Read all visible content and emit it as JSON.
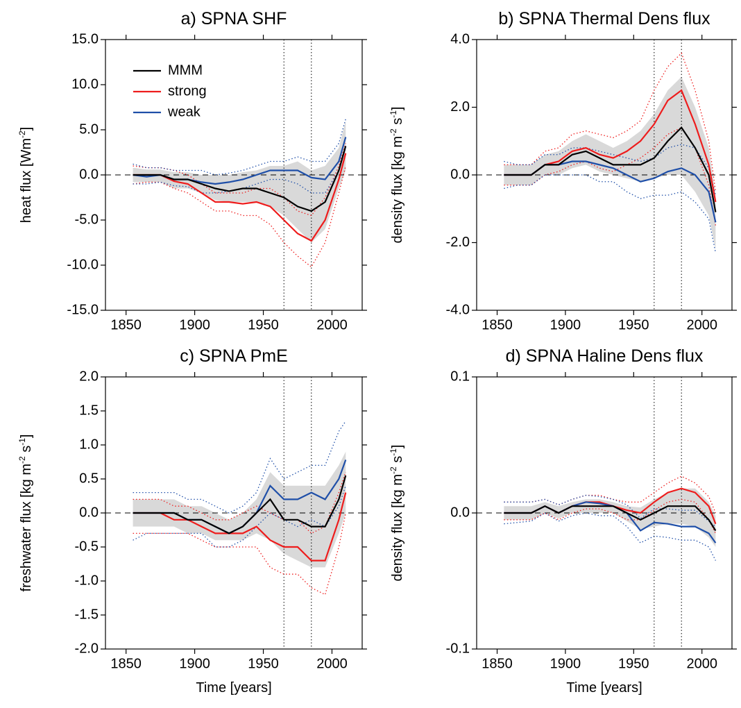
{
  "chart_data": [
    {
      "type": "line",
      "title": "a) SPNA SHF",
      "ylabel": [
        "heat flux [Wm",
        "-2",
        "]"
      ],
      "x": [
        1855,
        1865,
        1875,
        1885,
        1895,
        1905,
        1915,
        1925,
        1935,
        1945,
        1955,
        1965,
        1975,
        1985,
        1995,
        2005,
        2010
      ],
      "xlim": [
        1835,
        2022
      ],
      "xticks": [
        1850,
        1900,
        1950,
        2000
      ],
      "ylim": [
        -15,
        15
      ],
      "yticks": [
        {
          "value": -15,
          "label": "-15.0"
        },
        {
          "value": -10,
          "label": "-10.0"
        },
        {
          "value": -5,
          "label": "-5.0"
        },
        {
          "value": 0,
          "label": "0.0"
        },
        {
          "value": 5,
          "label": "5.0"
        },
        {
          "value": 10,
          "label": "10.0"
        },
        {
          "value": 15,
          "label": "15.0"
        }
      ],
      "vlines": [
        1965,
        1985
      ],
      "hline": 0,
      "legend": "upper left",
      "band": {
        "color": "#d9d9d9",
        "lower": [
          -0.8,
          -0.8,
          -0.8,
          -1.5,
          -1.5,
          -2,
          -2.8,
          -3,
          -3,
          -3,
          -3.5,
          -4.5,
          -6,
          -7.5,
          -6,
          -1.5,
          0.5
        ],
        "upper": [
          0.8,
          0.6,
          0.6,
          0.3,
          0.3,
          0,
          0,
          0,
          0.3,
          0.5,
          1,
          1,
          1.5,
          0.5,
          1,
          3,
          6
        ]
      },
      "series": [
        {
          "name": "MMM",
          "color": "#000000",
          "values": [
            0,
            0,
            0,
            -0.5,
            -0.5,
            -1,
            -1.5,
            -1.8,
            -1.5,
            -1.5,
            -2,
            -2.5,
            -3.5,
            -4,
            -3,
            0.5,
            3.2
          ]
        },
        {
          "name": "strong",
          "color": "#ee1c1c",
          "values": [
            0,
            0,
            0,
            -0.7,
            -1,
            -2,
            -3,
            -3,
            -3.2,
            -3,
            -3.5,
            -5,
            -6.5,
            -7.3,
            -5,
            -0.5,
            2.4
          ],
          "lower": [
            -1,
            -0.8,
            -0.8,
            -1.5,
            -2,
            -3,
            -4,
            -4,
            -4.5,
            -4.5,
            -5.5,
            -7.5,
            -9,
            -10.2,
            -7.5,
            -2,
            1
          ],
          "upper": [
            1,
            0.8,
            0.8,
            0.5,
            0,
            -1,
            -2,
            -2,
            -2,
            -1.5,
            -1.5,
            -2.5,
            -4,
            -4.5,
            -2.5,
            1,
            3.5
          ]
        },
        {
          "name": "weak",
          "color": "#1f4fa8",
          "values": [
            0,
            -0.2,
            0,
            -0.5,
            -0.5,
            -0.8,
            -1,
            -0.8,
            -0.5,
            0,
            0.5,
            0.5,
            0.5,
            -0.3,
            -0.5,
            1.5,
            4.2
          ],
          "lower": [
            -1,
            -1,
            -0.8,
            -1.2,
            -1.3,
            -2,
            -2,
            -1.8,
            -1.5,
            -1,
            -0.5,
            -0.5,
            -1,
            -2,
            -2,
            0.5,
            3
          ],
          "upper": [
            1.2,
            0.8,
            0.8,
            0.5,
            0.5,
            0.5,
            0,
            0.2,
            0.5,
            1,
            1.5,
            1.5,
            2,
            1.5,
            1.5,
            3.5,
            6.2
          ]
        }
      ]
    },
    {
      "type": "line",
      "title": "b) SPNA Thermal Dens flux",
      "ylabel": [
        "density flux [kg m",
        "-2",
        " s",
        "-1",
        "]"
      ],
      "x": [
        1855,
        1865,
        1875,
        1885,
        1895,
        1905,
        1915,
        1925,
        1935,
        1945,
        1955,
        1965,
        1975,
        1985,
        1995,
        2005,
        2010
      ],
      "xlim": [
        1835,
        2022
      ],
      "xticks": [
        1850,
        1900,
        1950,
        2000
      ],
      "ylim": [
        -4,
        4
      ],
      "yticks": [
        {
          "value": -4,
          "label": "-4.0"
        },
        {
          "value": -2,
          "label": "-2.0"
        },
        {
          "value": 0,
          "label": "0.0"
        },
        {
          "value": 2,
          "label": "2.0"
        },
        {
          "value": 4,
          "label": "4.0"
        }
      ],
      "vlines": [
        1965,
        1985
      ],
      "hline": 0,
      "band": {
        "color": "#d9d9d9",
        "lower": [
          -0.3,
          -0.3,
          -0.3,
          0,
          0,
          0.2,
          0.3,
          0.1,
          0,
          -0.1,
          -0.2,
          -0.1,
          0,
          0,
          -0.5,
          -1.2,
          -2.2
        ],
        "upper": [
          0.3,
          0.3,
          0.3,
          0.6,
          0.7,
          1,
          1.2,
          1,
          0.8,
          1,
          1.3,
          1.8,
          2.5,
          2.9,
          2,
          0.8,
          -0.6
        ]
      },
      "series": [
        {
          "color": "#000000",
          "values": [
            0,
            0,
            0,
            0.3,
            0.3,
            0.6,
            0.7,
            0.5,
            0.3,
            0.3,
            0.3,
            0.5,
            1,
            1.4,
            0.8,
            0,
            -1.1
          ]
        },
        {
          "color": "#ee1c1c",
          "values": [
            0,
            0,
            0,
            0.3,
            0.4,
            0.7,
            0.8,
            0.6,
            0.5,
            0.7,
            1,
            1.5,
            2.2,
            2.5,
            1.5,
            0.3,
            -0.8
          ],
          "lower": [
            -0.3,
            -0.3,
            -0.3,
            0,
            0.1,
            0.3,
            0.4,
            0.2,
            0.1,
            0.3,
            0.5,
            0.8,
            1.2,
            1.4,
            0.8,
            -0.3,
            -1.5
          ],
          "upper": [
            0.3,
            0.3,
            0.3,
            0.7,
            0.8,
            1.2,
            1.3,
            1.2,
            1.1,
            1.3,
            1.6,
            2.5,
            3.2,
            3.6,
            2.5,
            1,
            -0.5
          ]
        },
        {
          "color": "#1f4fa8",
          "values": [
            0,
            0,
            0,
            0.3,
            0.3,
            0.4,
            0.4,
            0.3,
            0.2,
            0,
            -0.2,
            -0.1,
            0.1,
            0.2,
            0,
            -0.5,
            -1.4
          ],
          "lower": [
            -0.4,
            -0.3,
            -0.3,
            0,
            0,
            0,
            0,
            -0.2,
            -0.2,
            -0.5,
            -0.7,
            -0.6,
            -0.6,
            -0.5,
            -0.8,
            -1.3,
            -2.3
          ],
          "upper": [
            0.4,
            0.3,
            0.3,
            0.6,
            0.6,
            0.8,
            0.8,
            0.7,
            0.6,
            0.5,
            0.4,
            0.5,
            0.8,
            0.9,
            0.8,
            0.2,
            -0.6
          ]
        }
      ]
    },
    {
      "type": "line",
      "title": "c) SPNA PmE",
      "ylabel": [
        "freshwater flux [kg m",
        "-2",
        " s",
        "-1",
        "]"
      ],
      "xlabel": "Time [years]",
      "x": [
        1855,
        1865,
        1875,
        1885,
        1895,
        1905,
        1915,
        1925,
        1935,
        1945,
        1955,
        1965,
        1975,
        1985,
        1995,
        2005,
        2010
      ],
      "xlim": [
        1835,
        2022
      ],
      "xticks": [
        1850,
        1900,
        1950,
        2000
      ],
      "ylim": [
        -2,
        2
      ],
      "yticks": [
        {
          "value": -2,
          "label": "-2.0"
        },
        -1.5,
        {
          "value": -1,
          "label": "-1.0"
        },
        -0.5,
        {
          "value": 0,
          "label": "0.0"
        },
        0.5,
        {
          "value": 1,
          "label": "1.0"
        },
        1.5,
        {
          "value": 2,
          "label": "2.0"
        }
      ],
      "vlines": [
        1965,
        1985
      ],
      "hline": 0,
      "band": {
        "color": "#d9d9d9",
        "lower": [
          -0.2,
          -0.2,
          -0.2,
          -0.2,
          -0.3,
          -0.3,
          -0.4,
          -0.4,
          -0.4,
          -0.3,
          -0.4,
          -0.6,
          -0.7,
          -0.8,
          -0.8,
          -0.3,
          0
        ],
        "upper": [
          0.2,
          0.2,
          0.2,
          0.2,
          0.1,
          0.1,
          0,
          -0.1,
          0,
          0.2,
          0.6,
          0.4,
          0.4,
          0.4,
          0.4,
          0.7,
          0.9
        ]
      },
      "series": [
        {
          "color": "#000000",
          "values": [
            0,
            0,
            0,
            0,
            -0.1,
            -0.1,
            -0.2,
            -0.3,
            -0.2,
            0,
            0.2,
            -0.1,
            -0.1,
            -0.2,
            -0.2,
            0.2,
            0.55
          ]
        },
        {
          "color": "#ee1c1c",
          "values": [
            0,
            0,
            0,
            -0.1,
            -0.1,
            -0.2,
            -0.3,
            -0.3,
            -0.3,
            -0.2,
            -0.4,
            -0.5,
            -0.5,
            -0.7,
            -0.7,
            -0.1,
            0.3
          ],
          "lower": [
            -0.3,
            -0.3,
            -0.3,
            -0.3,
            -0.3,
            -0.4,
            -0.5,
            -0.5,
            -0.5,
            -0.5,
            -0.8,
            -0.9,
            -0.9,
            -1.1,
            -1.2,
            -0.5,
            0
          ],
          "upper": [
            0.2,
            0.2,
            0.2,
            0.1,
            0.1,
            0,
            -0.1,
            -0.1,
            0,
            0.1,
            0,
            -0.1,
            -0.1,
            -0.3,
            -0.2,
            0.3,
            0.6
          ]
        },
        {
          "color": "#1f4fa8",
          "values": [
            0,
            0,
            0,
            0,
            -0.1,
            -0.1,
            -0.2,
            -0.3,
            -0.2,
            0,
            0.4,
            0.2,
            0.2,
            0.3,
            0.2,
            0.5,
            0.78
          ],
          "lower": [
            -0.4,
            -0.3,
            -0.3,
            -0.3,
            -0.3,
            -0.3,
            -0.5,
            -0.5,
            -0.4,
            -0.2,
            0,
            -0.1,
            -0.2,
            -0.1,
            -0.2,
            0.1,
            0.4
          ],
          "upper": [
            0.3,
            0.3,
            0.3,
            0.3,
            0.2,
            0.2,
            0.1,
            0,
            0.1,
            0.3,
            0.8,
            0.5,
            0.6,
            0.7,
            0.7,
            1.2,
            1.35
          ]
        }
      ]
    },
    {
      "type": "line",
      "title": "d) SPNA Haline Dens flux",
      "ylabel": [
        "density flux [kg m",
        "-2",
        " s",
        "-1",
        "]"
      ],
      "xlabel": "Time [years]",
      "x": [
        1855,
        1865,
        1875,
        1885,
        1895,
        1905,
        1915,
        1925,
        1935,
        1945,
        1955,
        1965,
        1975,
        1985,
        1995,
        2005,
        2010
      ],
      "xlim": [
        1835,
        2022
      ],
      "xticks": [
        1850,
        1900,
        1950,
        2000
      ],
      "ylim": [
        -0.1,
        0.1
      ],
      "yticks": [
        -0.1,
        {
          "value": 0,
          "label": "0.0"
        },
        0.1
      ],
      "vlines": [
        1965,
        1985
      ],
      "hline": 0,
      "band": {
        "color": "#d9d9d9",
        "lower": [
          -0.005,
          -0.005,
          -0.005,
          0,
          -0.004,
          0,
          0,
          0,
          0,
          -0.006,
          -0.012,
          -0.01,
          -0.008,
          -0.008,
          -0.01,
          -0.018,
          -0.025
        ],
        "upper": [
          0.005,
          0.005,
          0.005,
          0.008,
          0.005,
          0.008,
          0.01,
          0.01,
          0.008,
          0.005,
          0.004,
          0.01,
          0.015,
          0.018,
          0.018,
          0.008,
          -0.002
        ]
      },
      "series": [
        {
          "color": "#000000",
          "values": [
            0,
            0,
            0,
            0.005,
            0,
            0.005,
            0.005,
            0.005,
            0.005,
            0,
            -0.005,
            0,
            0.005,
            0.005,
            0.005,
            -0.005,
            -0.013
          ]
        },
        {
          "color": "#ee1c1c",
          "values": [
            0,
            0,
            0,
            0.005,
            0,
            0.005,
            0.008,
            0.008,
            0.005,
            0.002,
            0,
            0.008,
            0.015,
            0.018,
            0.015,
            0.005,
            -0.008
          ],
          "lower": [
            -0.005,
            -0.005,
            -0.005,
            0,
            -0.005,
            0,
            0.003,
            0.003,
            0,
            -0.005,
            -0.005,
            0.002,
            0.008,
            0.01,
            0.008,
            -0.005,
            -0.015
          ],
          "upper": [
            0.008,
            0.008,
            0.008,
            0.01,
            0.006,
            0.01,
            0.013,
            0.013,
            0.01,
            0.008,
            0.008,
            0.015,
            0.022,
            0.027,
            0.022,
            0.012,
            0
          ]
        },
        {
          "color": "#1f4fa8",
          "values": [
            0,
            0,
            0,
            0.005,
            0,
            0.005,
            0.008,
            0.007,
            0.005,
            0,
            -0.013,
            -0.007,
            -0.008,
            -0.01,
            -0.01,
            -0.015,
            -0.022
          ],
          "lower": [
            -0.008,
            -0.007,
            -0.006,
            0,
            -0.006,
            -0.002,
            0,
            -0.002,
            -0.002,
            -0.01,
            -0.022,
            -0.017,
            -0.018,
            -0.02,
            -0.02,
            -0.025,
            -0.035
          ],
          "upper": [
            0.008,
            0.008,
            0.008,
            0.01,
            0.006,
            0.01,
            0.013,
            0.012,
            0.01,
            0.006,
            -0.004,
            0.003,
            0.003,
            0.002,
            0.002,
            -0.006,
            -0.01
          ]
        }
      ]
    }
  ]
}
